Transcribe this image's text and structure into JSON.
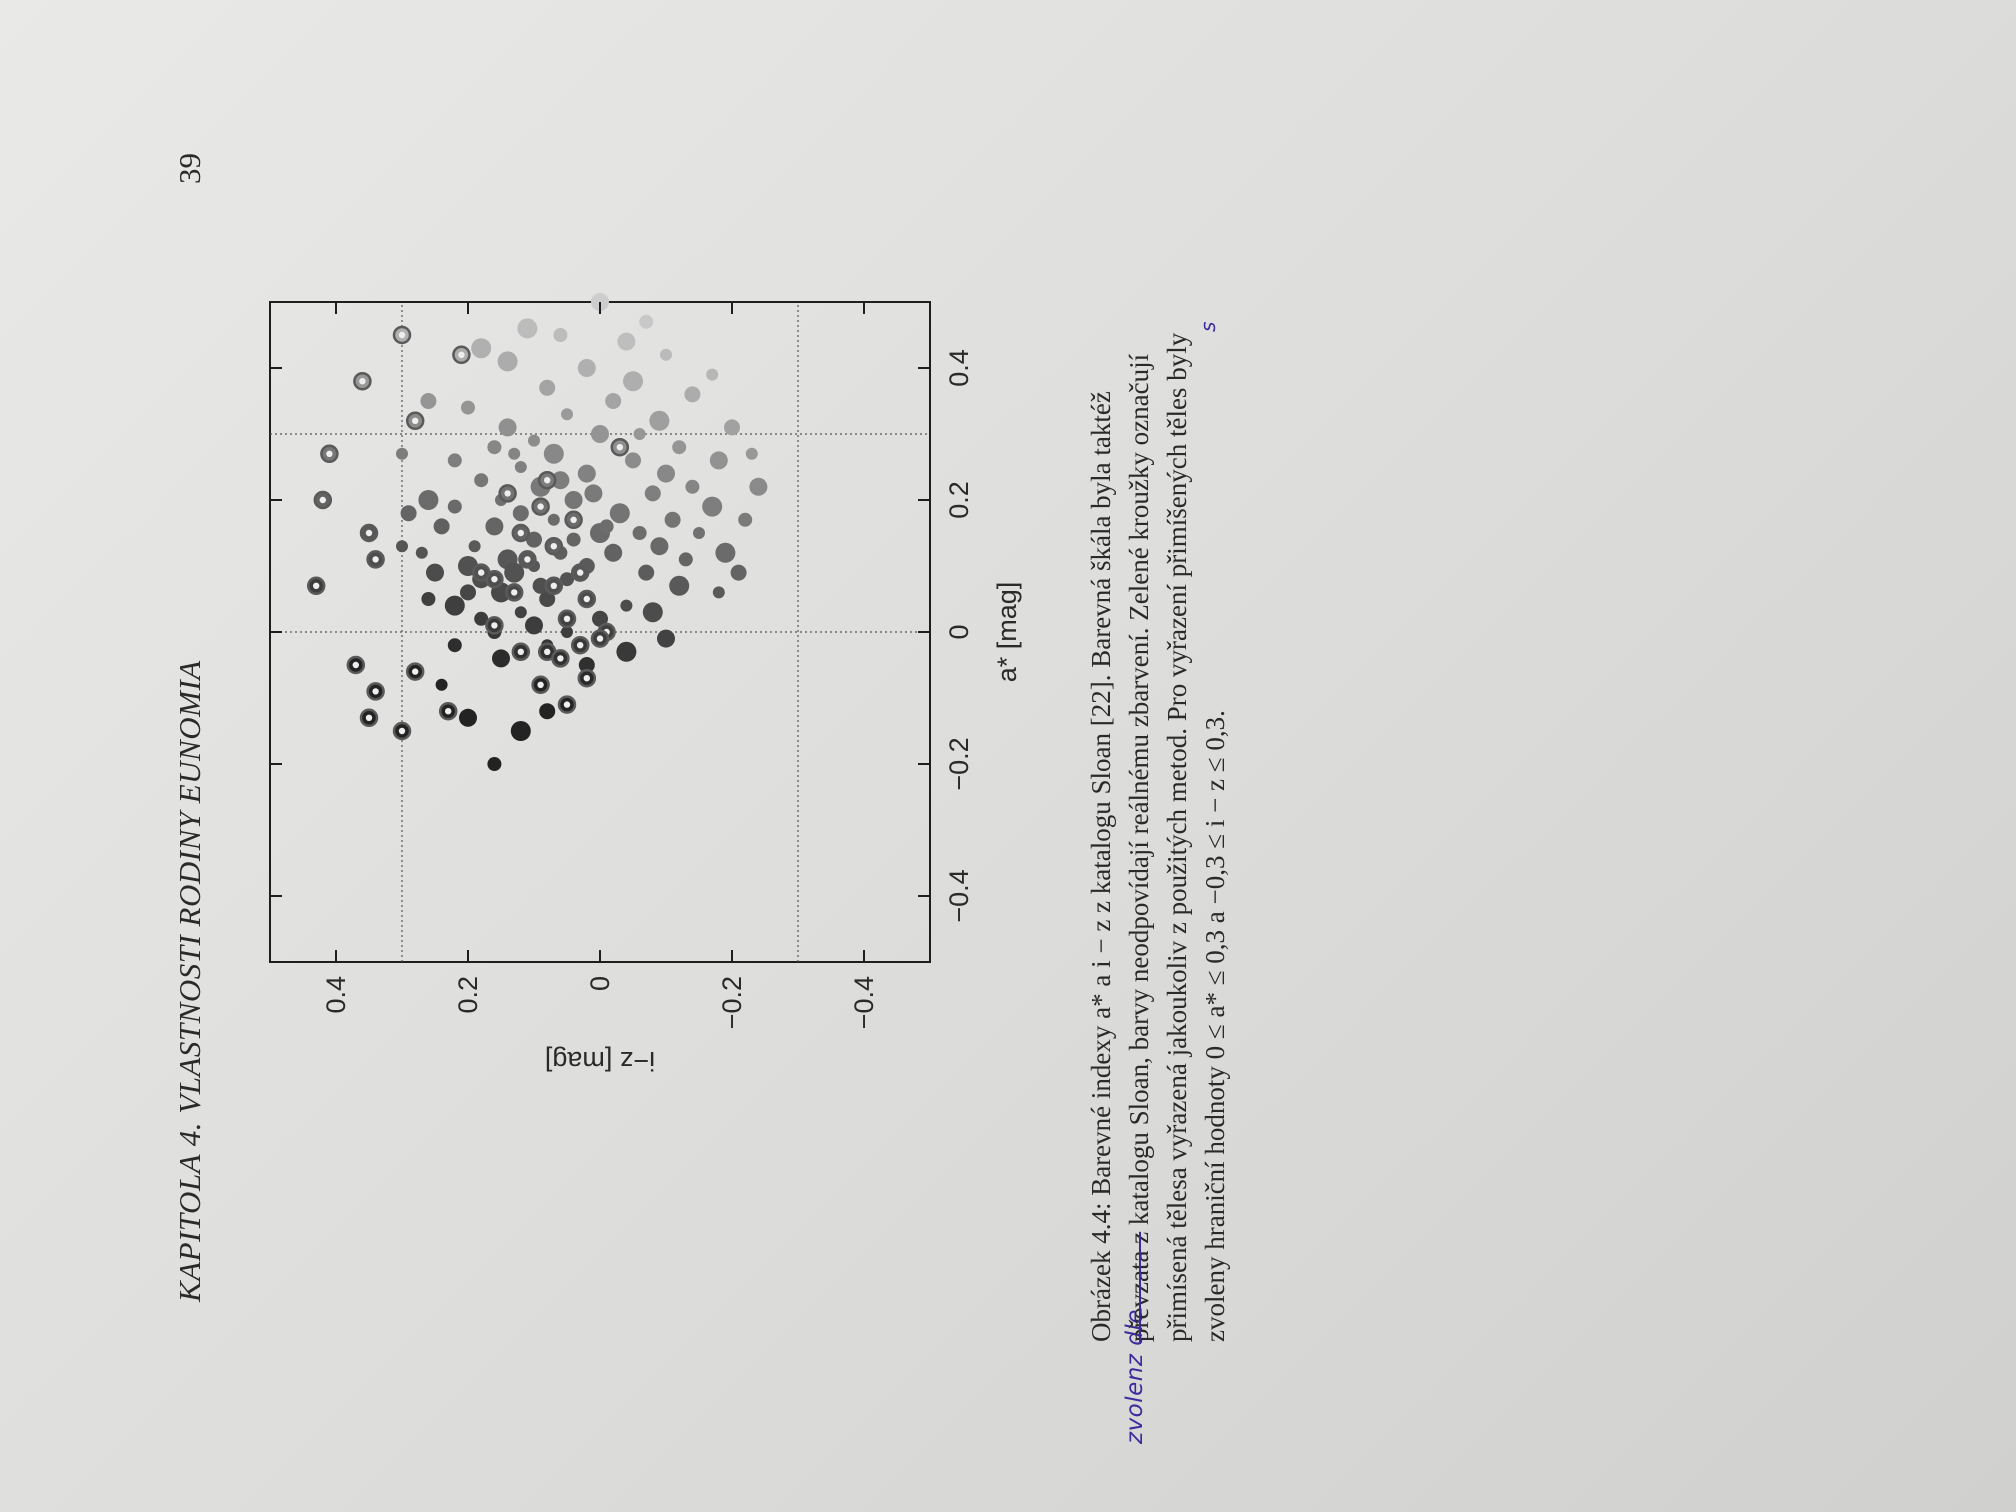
{
  "header": {
    "chapter_title": "KAPITOLA 4.  VLASTNOSTI RODINY EUNOMIA",
    "page_number": "39"
  },
  "figure": {
    "caption_lines": [
      "Obrázek 4.4: Barevné indexy a* a i − z z katalogu Sloan [22]. Barevná škála byla taktéž",
      "převzata z katalogu Sloan, barvy neodpovídají reálnému zbarvení. Zelené kroužky označují",
      "přimísená tělesa vyřazená jakoukoliv z použitých metod. Pro vyřazení přimíšených těles byly",
      "zvoleny hraniční hodnoty 0 ≤ a* ≤ 0,3 a −0,3 ≤ i − z ≤ 0,3."
    ],
    "caption_struck": "převzata z",
    "caption_rest_line2": " katalogu Sloan, barvy neodpovídají reálnému zbarvení. Zelené kroužky označují",
    "handwritten_note": "zvolenz dle",
    "handwritten_correction": "s"
  },
  "chart_data": {
    "type": "scatter",
    "title": "",
    "xlabel": "a* [mag]",
    "ylabel": "i−z [mag]",
    "xlim": [
      -0.5,
      0.5
    ],
    "ylim": [
      -0.5,
      0.5
    ],
    "xticks": [
      "−0.4",
      "−0.2",
      "0",
      "0.2",
      "0.4"
    ],
    "xtick_values": [
      -0.4,
      -0.2,
      0,
      0.2,
      0.4
    ],
    "yticks": [
      "0.4",
      "0.2",
      "0",
      "−0.2",
      "−0.4"
    ],
    "ytick_values": [
      0.4,
      0.2,
      0,
      -0.2,
      -0.4
    ],
    "grid": false,
    "reference_lines": {
      "vertical": [
        0,
        0.3
      ],
      "horizontal": [
        0.3,
        -0.3
      ]
    },
    "colors": {
      "dark": "#262626",
      "light": "#c9c9c9",
      "ring": "#5a5a5a"
    },
    "series": [
      {
        "marker": "filled-circle",
        "points": [
          [
            0.03,
            0.12
          ],
          [
            0.05,
            0.08
          ],
          [
            0.06,
            0.15
          ],
          [
            0.08,
            0.05
          ],
          [
            0.08,
            0.18
          ],
          [
            0.1,
            0.1
          ],
          [
            0.1,
            0.02
          ],
          [
            0.11,
            0.14
          ],
          [
            0.12,
            0.06
          ],
          [
            0.12,
            -0.02
          ],
          [
            0.13,
            0.19
          ],
          [
            0.14,
            0.1
          ],
          [
            0.15,
            0.0
          ],
          [
            0.15,
            -0.06
          ],
          [
            0.16,
            0.16
          ],
          [
            0.17,
            0.07
          ],
          [
            0.18,
            0.12
          ],
          [
            0.18,
            -0.03
          ],
          [
            0.19,
            0.22
          ],
          [
            0.2,
            0.04
          ],
          [
            0.2,
            0.15
          ],
          [
            0.21,
            -0.08
          ],
          [
            0.22,
            0.09
          ],
          [
            0.23,
            0.18
          ],
          [
            0.24,
            0.02
          ],
          [
            0.25,
            0.12
          ],
          [
            0.26,
            -0.05
          ],
          [
            0.27,
            0.07
          ],
          [
            0.28,
            0.16
          ],
          [
            0.3,
            0.0
          ],
          [
            0.29,
            0.1
          ],
          [
            0.09,
            -0.07
          ],
          [
            0.07,
            -0.12
          ],
          [
            0.11,
            -0.13
          ],
          [
            0.13,
            -0.09
          ],
          [
            0.15,
            -0.15
          ],
          [
            0.17,
            -0.11
          ],
          [
            0.19,
            -0.17
          ],
          [
            0.22,
            -0.14
          ],
          [
            0.24,
            -0.1
          ],
          [
            0.04,
            -0.04
          ],
          [
            0.06,
            0.2
          ],
          [
            0.04,
            0.22
          ],
          [
            0.02,
            0.18
          ],
          [
            0.01,
            0.1
          ],
          [
            0.0,
            0.05
          ],
          [
            0.02,
            0.0
          ],
          [
            0.03,
            -0.08
          ],
          [
            0.05,
            0.26
          ],
          [
            0.09,
            0.25
          ],
          [
            0.12,
            0.27
          ],
          [
            0.16,
            0.24
          ],
          [
            0.2,
            0.26
          ],
          [
            0.26,
            0.22
          ],
          [
            0.31,
            0.14
          ],
          [
            0.33,
            0.05
          ],
          [
            0.35,
            -0.02
          ],
          [
            0.32,
            -0.09
          ],
          [
            0.28,
            -0.12
          ],
          [
            0.26,
            -0.18
          ],
          [
            0.13,
            0.3
          ],
          [
            0.18,
            0.29
          ],
          [
            0.09,
            0.13
          ],
          [
            0.14,
            0.04
          ],
          [
            0.21,
            0.01
          ],
          [
            0.27,
            0.13
          ],
          [
            0.07,
            0.09
          ],
          [
            0.1,
            0.2
          ],
          [
            0.16,
            -0.01
          ],
          [
            0.23,
            0.06
          ],
          [
            0.3,
            -0.06
          ],
          [
            0.37,
            0.08
          ],
          [
            0.38,
            -0.05
          ],
          [
            0.34,
            0.2
          ],
          [
            0.4,
            0.02
          ],
          [
            0.42,
            -0.1
          ],
          [
            0.36,
            -0.14
          ],
          [
            0.41,
            0.14
          ],
          [
            0.45,
            0.06
          ],
          [
            0.44,
            -0.04
          ],
          [
            0.39,
            -0.17
          ],
          [
            0.31,
            -0.2
          ],
          [
            0.43,
            0.18
          ],
          [
            -0.02,
            0.22
          ],
          [
            -0.04,
            0.15
          ],
          [
            -0.02,
            0.08
          ],
          [
            -0.05,
            0.02
          ],
          [
            -0.03,
            -0.04
          ],
          [
            0.0,
            0.16
          ],
          [
            -0.01,
            -0.1
          ],
          [
            0.06,
            -0.18
          ],
          [
            0.09,
            -0.21
          ],
          [
            0.12,
            -0.19
          ],
          [
            0.17,
            -0.22
          ],
          [
            0.22,
            -0.24
          ],
          [
            0.27,
            -0.23
          ],
          [
            -0.12,
            0.08
          ],
          [
            -0.15,
            0.12
          ],
          [
            -0.2,
            0.16
          ],
          [
            -0.13,
            0.2
          ],
          [
            -0.08,
            0.24
          ],
          [
            0.35,
            0.26
          ],
          [
            0.46,
            0.11
          ],
          [
            0.47,
            -0.07
          ],
          [
            0.5,
            0.0
          ],
          [
            0.27,
            0.3
          ]
        ]
      },
      {
        "marker": "ringed-circle",
        "points": [
          [
            0.07,
            0.07
          ],
          [
            0.09,
            0.03
          ],
          [
            0.11,
            0.11
          ],
          [
            0.13,
            0.07
          ],
          [
            0.15,
            0.12
          ],
          [
            0.17,
            0.04
          ],
          [
            0.19,
            0.09
          ],
          [
            0.06,
            0.13
          ],
          [
            0.08,
            0.16
          ],
          [
            0.21,
            0.14
          ],
          [
            0.23,
            0.08
          ],
          [
            0.05,
            0.02
          ],
          [
            0.02,
            0.05
          ],
          [
            0.0,
            -0.01
          ],
          [
            -0.02,
            0.03
          ],
          [
            -0.03,
            0.12
          ],
          [
            -0.08,
            0.09
          ],
          [
            -0.11,
            0.05
          ],
          [
            -0.06,
            0.28
          ],
          [
            -0.09,
            0.34
          ],
          [
            -0.13,
            0.35
          ],
          [
            -0.15,
            0.3
          ],
          [
            -0.12,
            0.23
          ],
          [
            -0.05,
            0.37
          ],
          [
            0.07,
            0.43
          ],
          [
            0.11,
            0.34
          ],
          [
            0.15,
            0.35
          ],
          [
            0.2,
            0.42
          ],
          [
            0.27,
            0.41
          ],
          [
            0.32,
            0.28
          ],
          [
            0.38,
            0.36
          ],
          [
            0.45,
            0.3
          ],
          [
            0.42,
            0.21
          ],
          [
            0.28,
            -0.03
          ],
          [
            -0.03,
            0.08
          ],
          [
            -0.07,
            0.02
          ],
          [
            0.01,
            0.16
          ],
          [
            0.09,
            0.18
          ],
          [
            -0.01,
            0.0
          ],
          [
            -0.04,
            0.06
          ]
        ]
      }
    ]
  }
}
